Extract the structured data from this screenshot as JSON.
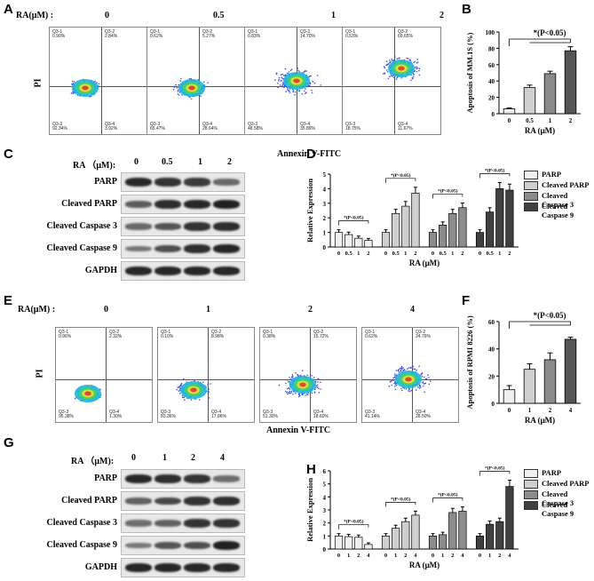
{
  "panels": {
    "A": {
      "letter": "A",
      "dose_header": "RA(μM) :",
      "doses": [
        "0",
        "0.5",
        "1",
        "2"
      ],
      "ylabel": "PI",
      "xlabel": "Annexin V-FITC",
      "quads": [
        {
          "q1": "Q3-1",
          "v1": "0.90%",
          "q2": "Q3-2",
          "v2": "2.84%",
          "q3": "Q3-3",
          "v3": "92.34%",
          "q4": "Q3-4",
          "v4": "3.92%"
        },
        {
          "q1": "Q3-1",
          "v1": "0.62%",
          "q2": "Q3-2",
          "v2": "5.27%",
          "q3": "Q3-3",
          "v3": "65.47%",
          "q4": "Q3-4",
          "v4": "28.64%"
        },
        {
          "q1": "Q3-1",
          "v1": "0.83%",
          "q2": "Q3-2",
          "v2": "14.70%",
          "q3": "Q3-3",
          "v3": "48.58%",
          "q4": "Q3-4",
          "v4": "35.89%"
        },
        {
          "q1": "Q3-1",
          "v1": "0.53%",
          "q2": "Q3-2",
          "v2": "69.65%",
          "q3": "Q3-3",
          "v3": "18.75%",
          "q4": "Q3-4",
          "v4": "11.67%"
        }
      ]
    },
    "B": {
      "letter": "B"
    },
    "C": {
      "letter": "C",
      "dose_header": "RA （μM):",
      "doses": [
        "0",
        "0.5",
        "1",
        "2"
      ],
      "rows": [
        "PARP",
        "Cleaved PARP",
        "Cleaved  Caspase 3",
        "Cleaved  Caspase 9",
        "GAPDH"
      ]
    },
    "D": {
      "letter": "D"
    },
    "E": {
      "letter": "E",
      "dose_header": "RA(μM) :",
      "doses": [
        "0",
        "1",
        "2",
        "4"
      ],
      "ylabel": "PI",
      "xlabel": "Annexin V-FITC",
      "quads": [
        {
          "q1": "Q3-1",
          "v1": "0.96%",
          "q2": "Q3-2",
          "v2": "2.32%",
          "q3": "Q3-3",
          "v3": "95.38%",
          "q4": "Q3-4",
          "v4": "1.30%"
        },
        {
          "q1": "Q3-1",
          "v1": "0.10%",
          "q2": "Q3-2",
          "v2": "8.98%",
          "q3": "Q3-3",
          "v3": "83.36%",
          "q4": "Q3-4",
          "v4": "17.86%"
        },
        {
          "q1": "Q3-1",
          "v1": "0.38%",
          "q2": "Q3-2",
          "v2": "15.72%",
          "q3": "Q3-3",
          "v3": "51.30%",
          "q4": "Q3-4",
          "v4": "18.60%"
        },
        {
          "q1": "Q3-1",
          "v1": "0.62%",
          "q2": "Q3-2",
          "v2": "24.76%",
          "q3": "Q3-3",
          "v3": "41.14%",
          "q4": "Q3-4",
          "v4": "28.50%"
        }
      ]
    },
    "F": {
      "letter": "F"
    },
    "G": {
      "letter": "G",
      "dose_header": "RA （μM):",
      "doses": [
        "0",
        "1",
        "2",
        "4"
      ],
      "rows": [
        "PARP",
        "Cleaved PARP",
        "Cleaved Caspase 3",
        "Cleaved Caspase 9",
        "GAPDH"
      ]
    },
    "H": {
      "letter": "H"
    }
  },
  "legend": [
    "PARP",
    "Cleaved PARP",
    "Cleaved Caspase 3",
    "Cleaved Caspase 9"
  ],
  "chart_data": [
    {
      "id": "B",
      "type": "bar",
      "categories": [
        "0",
        "0.5",
        "1",
        "2"
      ],
      "values": [
        6,
        32,
        49,
        77
      ],
      "errors": [
        1,
        3,
        3,
        5
      ],
      "ylabel": "Apoptosis of MM.1S (%)",
      "xlabel": "RA (μM)",
      "ylim": [
        0,
        100
      ],
      "yticks": [
        0,
        20,
        40,
        60,
        80,
        100
      ],
      "sig": "*(P<0.05)"
    },
    {
      "id": "D",
      "type": "bar",
      "groups": [
        "0",
        "0.5",
        "1",
        "2"
      ],
      "series": [
        {
          "name": "PARP",
          "values": [
            1.0,
            0.85,
            0.6,
            0.45
          ]
        },
        {
          "name": "Cleaved PARP",
          "values": [
            1.0,
            2.3,
            2.8,
            3.7
          ]
        },
        {
          "name": "Cleaved Caspase 3",
          "values": [
            1.0,
            1.5,
            2.3,
            2.7
          ]
        },
        {
          "name": "Cleaved Caspase 9",
          "values": [
            1.0,
            2.4,
            4.0,
            3.9
          ]
        }
      ],
      "ylabel": "Relative Expression",
      "xlabel": "RA (μM)",
      "ylim": [
        0,
        5
      ],
      "yticks": [
        0,
        1,
        2,
        3,
        4,
        5
      ],
      "sig": "*(P<0.05)"
    },
    {
      "id": "F",
      "type": "bar",
      "categories": [
        "0",
        "1",
        "2",
        "4"
      ],
      "values": [
        10,
        25,
        32,
        47
      ],
      "errors": [
        3,
        4,
        5,
        1.5
      ],
      "ylabel": "Apoptosis of RPMI 8226 (%)",
      "xlabel": "RA (μM)",
      "ylim": [
        0,
        60
      ],
      "yticks": [
        0,
        20,
        40,
        60
      ],
      "sig": "*(P<0.05)"
    },
    {
      "id": "H",
      "type": "bar",
      "groups": [
        "0",
        "1",
        "2",
        "4"
      ],
      "series": [
        {
          "name": "PARP",
          "values": [
            1.0,
            0.95,
            0.9,
            0.35
          ]
        },
        {
          "name": "Cleaved PARP",
          "values": [
            1.0,
            1.6,
            2.1,
            2.6
          ]
        },
        {
          "name": "Cleaved Caspase 3",
          "values": [
            1.0,
            1.1,
            2.8,
            2.9
          ]
        },
        {
          "name": "Cleaved Caspase 9",
          "values": [
            1.0,
            1.9,
            2.1,
            4.8
          ]
        }
      ],
      "ylabel": "Relative Expression",
      "xlabel": "RA (μM)",
      "ylim": [
        0,
        6
      ],
      "yticks": [
        0,
        1,
        2,
        3,
        4,
        5,
        6
      ],
      "sig": "*(P<0.05)"
    }
  ]
}
